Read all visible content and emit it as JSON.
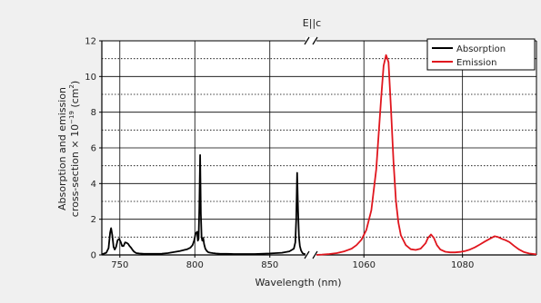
{
  "chart_data": {
    "type": "line",
    "title": "E||c",
    "xlabel": "Wavelength (nm)",
    "ylabel_line1": "Absorption and emission",
    "ylabel_line2_prefix": "cross-section × 10",
    "ylabel_line2_exp1": "−19",
    "ylabel_line2_mid": " (cm",
    "ylabel_line2_exp2": "2",
    "ylabel_line2_suffix": ")",
    "ylim": [
      0,
      12
    ],
    "yticks": [
      "0",
      "2",
      "4",
      "6",
      "8",
      "10",
      "12"
    ],
    "grid": true,
    "legend": "top-right",
    "axis_break": true,
    "panels": [
      {
        "xlim": [
          738,
          875
        ],
        "xticks": [
          750,
          800,
          850
        ],
        "xtick_labels": [
          "750",
          "800",
          "850"
        ]
      },
      {
        "xlim": [
          1050,
          1095
        ],
        "xticks": [
          1060,
          1080
        ],
        "xtick_labels": [
          "1060",
          "1080"
        ]
      }
    ],
    "series": [
      {
        "name": "Absorption",
        "color": "#000000",
        "panel": 0,
        "x": [
          738,
          741,
          742.5,
          743.5,
          744.2,
          745,
          745.8,
          746.6,
          747.5,
          748.5,
          749.5,
          750.5,
          751.5,
          752.5,
          753.5,
          754.5,
          755.5,
          756.5,
          757.5,
          758.5,
          759.5,
          761,
          763,
          766,
          770,
          774,
          778,
          782,
          786,
          790,
          793,
          795,
          797,
          798.5,
          799.5,
          800.5,
          801.5,
          802,
          802.5,
          803,
          803.5,
          804,
          804.5,
          805,
          805.6,
          806.2,
          807,
          808,
          809,
          810.5,
          812,
          814,
          817,
          821,
          826,
          832,
          840,
          850,
          858,
          863,
          866,
          867,
          867.6,
          868.2,
          868.8,
          869.4,
          870,
          870.8,
          871.8,
          873,
          875
        ],
        "y": [
          0.03,
          0.12,
          0.38,
          1.25,
          1.5,
          1.1,
          0.45,
          0.3,
          0.45,
          0.82,
          0.9,
          0.75,
          0.5,
          0.5,
          0.7,
          0.68,
          0.62,
          0.5,
          0.4,
          0.28,
          0.18,
          0.1,
          0.08,
          0.06,
          0.06,
          0.06,
          0.07,
          0.1,
          0.16,
          0.22,
          0.28,
          0.32,
          0.4,
          0.55,
          0.8,
          1.2,
          1.3,
          0.8,
          0.9,
          2.6,
          5.6,
          2.3,
          1.0,
          0.8,
          0.95,
          0.6,
          0.35,
          0.22,
          0.15,
          0.12,
          0.1,
          0.08,
          0.06,
          0.06,
          0.05,
          0.05,
          0.05,
          0.08,
          0.12,
          0.2,
          0.35,
          0.7,
          2.0,
          4.6,
          2.5,
          1.0,
          0.5,
          0.25,
          0.1,
          0.05,
          0.03
        ]
      },
      {
        "name": "Emission",
        "color": "#e0161e",
        "panel": 1,
        "x": [
          1050,
          1051.5,
          1053,
          1054.5,
          1056,
          1057.5,
          1058.5,
          1059.5,
          1060.5,
          1061.5,
          1062.5,
          1063.5,
          1064,
          1064.5,
          1065,
          1065.5,
          1066,
          1066.5,
          1067,
          1067.5,
          1068.5,
          1069.5,
          1070.5,
          1071.5,
          1072.5,
          1073,
          1073.6,
          1074.2,
          1074.8,
          1075.5,
          1076.5,
          1077.5,
          1078.5,
          1079.5,
          1080.5,
          1081.5,
          1082.5,
          1083.5,
          1084.5,
          1085.5,
          1086.5,
          1087.2,
          1088,
          1088.8,
          1089.5,
          1090.5,
          1091.5,
          1092.5,
          1093.5,
          1095
        ],
        "y": [
          0.0,
          0.02,
          0.05,
          0.1,
          0.2,
          0.35,
          0.55,
          0.85,
          1.4,
          2.5,
          4.8,
          8.8,
          10.6,
          11.2,
          10.8,
          8.2,
          5.2,
          3.0,
          1.8,
          1.1,
          0.55,
          0.32,
          0.28,
          0.35,
          0.65,
          0.95,
          1.15,
          0.95,
          0.55,
          0.3,
          0.18,
          0.14,
          0.14,
          0.17,
          0.22,
          0.3,
          0.42,
          0.58,
          0.75,
          0.9,
          1.05,
          1.0,
          0.9,
          0.82,
          0.72,
          0.5,
          0.3,
          0.16,
          0.08,
          0.03
        ]
      }
    ]
  }
}
